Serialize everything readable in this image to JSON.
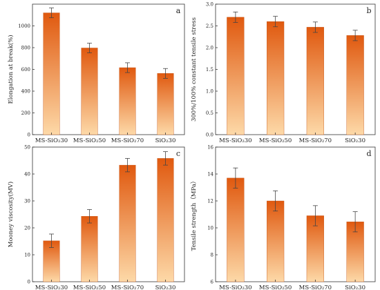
{
  "colors": {
    "bar_top": "#e0590f",
    "bar_bottom": "#fdd9a8",
    "error_bar": "#444444",
    "axis": "#333333"
  },
  "chart_data": [
    {
      "type": "bar",
      "panel_label": "a",
      "categories": [
        "MS-SiO₂30",
        "MS-SiO₂50",
        "MS-SiO₂70",
        "SiO₂30"
      ],
      "values": [
        1120,
        797,
        616,
        563
      ],
      "errors": [
        45,
        45,
        45,
        45
      ],
      "xlabel": "",
      "ylabel": "Elongation at break(%)",
      "ylim": [
        0,
        1200
      ],
      "yticks": [
        0,
        200,
        400,
        600,
        800,
        1000
      ],
      "grid": false
    },
    {
      "type": "bar",
      "panel_label": "b",
      "categories": [
        "MS-SiO₂30",
        "MS-SiO₂50",
        "MS-SiO₂70",
        "SiO₂30"
      ],
      "values": [
        2.7,
        2.6,
        2.47,
        2.28
      ],
      "errors": [
        0.12,
        0.12,
        0.12,
        0.12
      ],
      "xlabel": "",
      "ylabel": "300%/100% constant tensile stress",
      "ylim": [
        0,
        3.0
      ],
      "yticks": [
        0.0,
        0.5,
        1.0,
        1.5,
        2.0,
        2.5,
        3.0
      ],
      "grid": false
    },
    {
      "type": "bar",
      "panel_label": "c",
      "categories": [
        "MS-SiO₂30",
        "MS-SiO₂50",
        "MS-SiO₂70",
        "SiO₂30"
      ],
      "values": [
        15.2,
        24.3,
        43.3,
        45.8
      ],
      "errors": [
        2.5,
        2.5,
        2.5,
        2.5
      ],
      "xlabel": "",
      "ylabel": "Mooney viscosity(MV)",
      "ylim": [
        0,
        50
      ],
      "yticks": [
        0,
        10,
        20,
        30,
        40,
        50
      ],
      "grid": false
    },
    {
      "type": "bar",
      "panel_label": "d",
      "categories": [
        "MS-SiO₂30",
        "MS-SiO₂50",
        "MS-SiO₂70",
        "SiO₂30"
      ],
      "values": [
        13.7,
        12.0,
        10.9,
        10.45
      ],
      "errors": [
        0.75,
        0.75,
        0.75,
        0.75
      ],
      "xlabel": "",
      "ylabel": "Tensile strength（MPa）",
      "ylim": [
        6,
        16
      ],
      "yticks": [
        6,
        8,
        10,
        12,
        14,
        16
      ],
      "grid": false
    }
  ]
}
